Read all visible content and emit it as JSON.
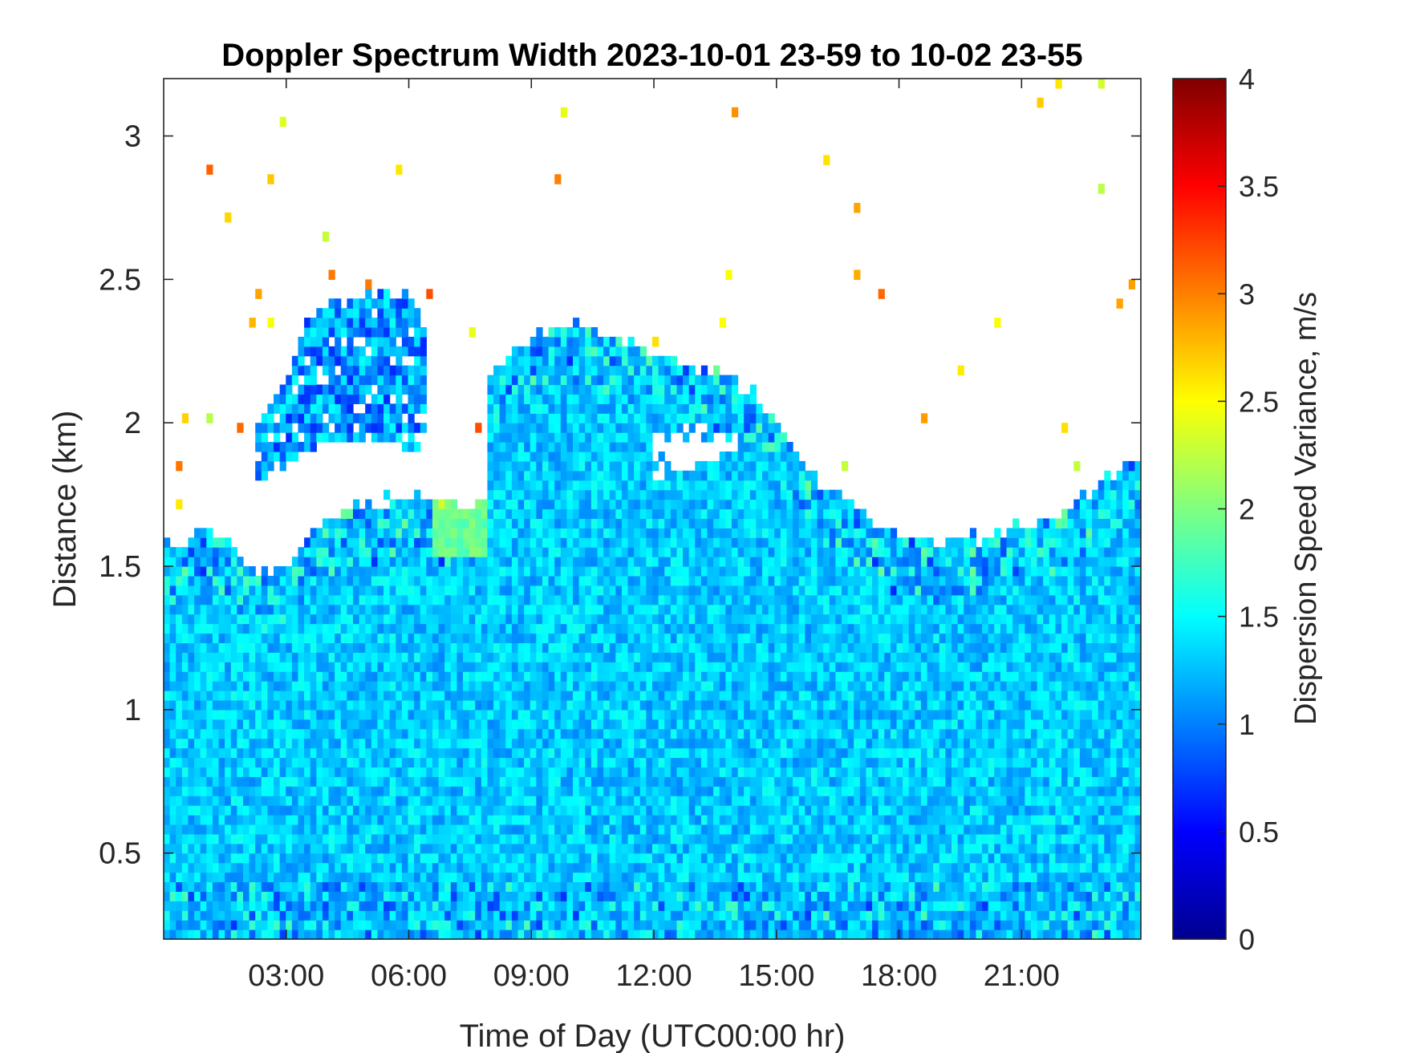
{
  "chart_data": {
    "type": "heatmap",
    "title": "Doppler Spectrum Width 2023-10-01 23-59 to 10-02 23-55",
    "xlabel": "Time of Day (UTC00:00 hr)",
    "ylabel": "Distance (km)",
    "xlim": [
      0.0,
      23.92
    ],
    "ylim": [
      0.2,
      3.2
    ],
    "x_ticks": [
      3,
      6,
      9,
      12,
      15,
      18,
      21
    ],
    "x_tick_labels": [
      "03:00",
      "06:00",
      "09:00",
      "12:00",
      "15:00",
      "18:00",
      "21:00"
    ],
    "y_ticks": [
      0.5,
      1,
      1.5,
      2,
      2.5,
      3
    ],
    "y_tick_labels": [
      "0.5",
      "1",
      "1.5",
      "2",
      "2.5",
      "3"
    ],
    "colorbar": {
      "label": "Dispersion Speed Variance, m/s",
      "colormap": "jet",
      "clim": [
        0,
        4
      ],
      "ticks": [
        0,
        0.5,
        1,
        1.5,
        2,
        2.5,
        3,
        3.5,
        4
      ],
      "tick_labels": [
        "0",
        "0.5",
        "1",
        "1.5",
        "2",
        "2.5",
        "3",
        "3.5",
        "4"
      ]
    },
    "typical_value": 1.3,
    "echo_top_km": {
      "time_hr": [
        0.0,
        0.5,
        1.0,
        1.5,
        2.0,
        2.3,
        2.7,
        3.0,
        3.5,
        4.0,
        4.5,
        5.0,
        5.5,
        6.0,
        6.4,
        6.6,
        7.0,
        7.5,
        7.9,
        8.0,
        8.5,
        9.0,
        10.0,
        11.0,
        12.0,
        13.0,
        14.0,
        14.5,
        15.0,
        15.5,
        16.0,
        16.5,
        17.0,
        18.0,
        19.0,
        20.0,
        21.0,
        22.0,
        23.0,
        23.92
      ],
      "top_km": [
        1.58,
        1.57,
        1.63,
        1.6,
        1.52,
        1.47,
        1.48,
        1.52,
        1.6,
        1.66,
        1.7,
        1.71,
        1.73,
        1.75,
        1.77,
        1.7,
        1.71,
        1.71,
        1.7,
        2.2,
        2.25,
        2.3,
        2.35,
        2.3,
        2.25,
        2.2,
        2.15,
        2.1,
        2.0,
        1.9,
        1.8,
        1.75,
        1.7,
        1.6,
        1.58,
        1.6,
        1.65,
        1.68,
        1.8,
        1.9
      ]
    },
    "elevated_layer_km": {
      "time_hr": [
        2.3,
        3.0,
        3.5,
        4.0,
        5.0,
        6.0,
        6.5
      ],
      "base_km": [
        1.8,
        1.85,
        1.9,
        1.95,
        1.95,
        1.9,
        1.9
      ],
      "top_km": [
        2.0,
        2.15,
        2.35,
        2.42,
        2.45,
        2.45,
        2.35
      ]
    },
    "gaps_km": {
      "time_hr": [
        12.0,
        13.0,
        14.0
      ],
      "base_km": [
        1.8,
        1.85,
        1.9
      ],
      "top_km": [
        1.95,
        2.0,
        1.95
      ]
    },
    "green_patch": {
      "time_range_hr": [
        6.6,
        7.9
      ],
      "height_range_km": [
        1.55,
        1.72
      ],
      "value": 1.9
    }
  }
}
